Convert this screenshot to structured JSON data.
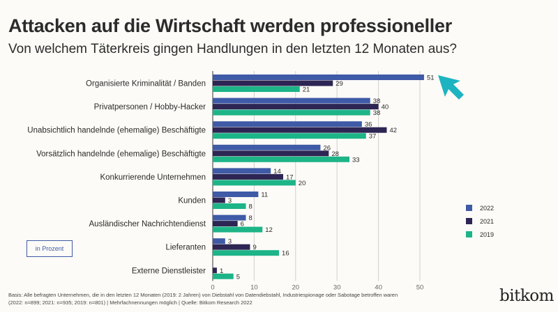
{
  "chart_data": {
    "type": "bar",
    "orientation": "horizontal",
    "title": "Attacken auf die Wirtschaft werden professioneller",
    "subtitle": "Von welchem Täterkreis gingen Handlungen in den letzten 12 Monaten aus?",
    "categories": [
      "Organisierte Kriminalität / Banden",
      "Privatpersonen / Hobby-Hacker",
      "Unabsichtlich handelnde (ehemalige) Beschäftigte",
      "Vorsätzlich handelnde (ehemalige) Beschäftigte",
      "Konkurrierende Unternehmen",
      "Kunden",
      "Ausländischer Nachrichtendienst",
      "Lieferanten",
      "Externe Dienstleister"
    ],
    "series": [
      {
        "name": "2022",
        "color": "#3f5aa6",
        "values": [
          51,
          38,
          36,
          26,
          14,
          11,
          8,
          3,
          null
        ]
      },
      {
        "name": "2021",
        "color": "#2d2553",
        "values": [
          29,
          40,
          42,
          28,
          17,
          3,
          6,
          9,
          1
        ]
      },
      {
        "name": "2019",
        "color": "#1db488",
        "values": [
          21,
          38,
          37,
          33,
          20,
          8,
          12,
          16,
          5
        ]
      }
    ],
    "xlim": [
      0,
      50
    ],
    "xticks": [
      0,
      10,
      20,
      30,
      40,
      50
    ],
    "grid": true,
    "legend_position": "right",
    "unit_label": "in Prozent"
  },
  "footnote": [
    "Basis: Alle befragten Unternehmen, die in den letzten 12 Monaten (2019: 2 Jahren) von Diebstahl von Datendiebstahl, Industriespionage oder Sabotage betroffen waren",
    "(2022: n=899; 2021: n=935; 2019: n=801) | Mehrfachnennungen möglich | Quelle: Bitkom Research 2022"
  ],
  "logo": "bitkom",
  "cursor_color": "#1eb3c0"
}
